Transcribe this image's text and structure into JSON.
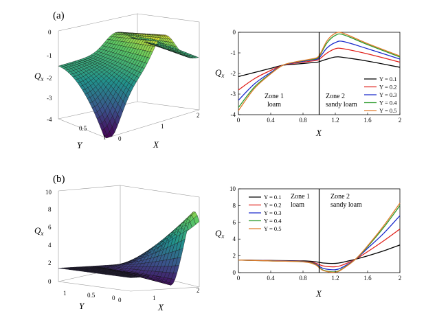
{
  "panel_labels": [
    "(a)",
    "(b)"
  ],
  "colors": {
    "Y = 0.1": "#000000",
    "Y = 0.2": "#e0201a",
    "Y = 0.3": "#1a2acc",
    "Y = 0.4": "#2a9a2a",
    "Y = 0.5": "#e07a2a"
  },
  "chart_data": [
    {
      "id": "a-surface",
      "type": "surface3d",
      "panel": "(a)",
      "zlabel": "Q_x",
      "xlabel": "X",
      "ylabel": "Y",
      "zlim": [
        -4,
        0
      ],
      "z_ticks": [
        "0",
        "-1",
        "-2",
        "-3",
        "-4"
      ],
      "x_ticks": [
        "0",
        "1",
        "2"
      ],
      "y_ticks": [
        "0.5",
        "1"
      ],
      "colormap": "viridis",
      "description_points": {
        "min": -4.0,
        "max": -0.1
      }
    },
    {
      "id": "a-lines",
      "type": "line",
      "panel": "(a)",
      "xlabel": "X",
      "ylabel": "Q_x",
      "xlim": [
        0,
        2
      ],
      "ylim": [
        -4,
        0
      ],
      "x_ticks": [
        "0",
        "0.4",
        "0.8",
        "1.2",
        "1.6",
        "2"
      ],
      "y_ticks": [
        "0",
        "-1",
        "-2",
        "-3",
        "-4"
      ],
      "zone_boundary_x": 1,
      "zone1": [
        "Zone 1",
        "loam"
      ],
      "zone2": [
        "Zone 2",
        "sandy loam"
      ],
      "legend": [
        "Y = 0.1",
        "Y = 0.2",
        "Y = 0.3",
        "Y = 0.4",
        "Y = 0.5"
      ],
      "series": [
        {
          "name": "Y = 0.1",
          "x": [
            0,
            0.2,
            0.4,
            0.55,
            0.7,
            0.9,
            0.98,
            1.02,
            1.1,
            1.2,
            1.3,
            1.6,
            2.0
          ],
          "y": [
            -2.15,
            -1.95,
            -1.75,
            -1.6,
            -1.55,
            -1.48,
            -1.45,
            -1.4,
            -1.3,
            -1.2,
            -1.22,
            -1.4,
            -1.7
          ]
        },
        {
          "name": "Y = 0.2",
          "x": [
            0,
            0.2,
            0.4,
            0.55,
            0.7,
            0.9,
            0.98,
            1.02,
            1.1,
            1.2,
            1.3,
            1.6,
            2.0
          ],
          "y": [
            -2.8,
            -2.25,
            -1.85,
            -1.6,
            -1.5,
            -1.4,
            -1.35,
            -1.25,
            -1.0,
            -0.8,
            -0.8,
            -1.05,
            -1.45
          ]
        },
        {
          "name": "Y = 0.3",
          "x": [
            0,
            0.2,
            0.4,
            0.55,
            0.7,
            0.9,
            0.98,
            1.02,
            1.1,
            1.2,
            1.3,
            1.6,
            2.0
          ],
          "y": [
            -3.3,
            -2.5,
            -1.95,
            -1.6,
            -1.47,
            -1.35,
            -1.3,
            -1.15,
            -0.75,
            -0.5,
            -0.45,
            -0.8,
            -1.3
          ]
        },
        {
          "name": "Y = 0.4",
          "x": [
            0,
            0.2,
            0.4,
            0.55,
            0.7,
            0.9,
            0.98,
            1.02,
            1.1,
            1.2,
            1.3,
            1.6,
            2.0
          ],
          "y": [
            -3.65,
            -2.65,
            -2.0,
            -1.6,
            -1.45,
            -1.32,
            -1.25,
            -1.05,
            -0.5,
            -0.15,
            -0.12,
            -0.6,
            -1.2
          ]
        },
        {
          "name": "Y = 0.5",
          "x": [
            0,
            0.2,
            0.4,
            0.55,
            0.7,
            0.9,
            0.98,
            1.02,
            1.1,
            1.2,
            1.3,
            1.6,
            2.0
          ],
          "y": [
            -3.8,
            -2.72,
            -2.02,
            -1.6,
            -1.44,
            -1.3,
            -1.22,
            -1.0,
            -0.4,
            -0.05,
            -0.05,
            -0.55,
            -1.15
          ]
        }
      ]
    },
    {
      "id": "b-surface",
      "type": "surface3d",
      "panel": "(b)",
      "zlabel": "Q_x",
      "xlabel": "X",
      "ylabel": "Y",
      "zlim": [
        0,
        10
      ],
      "z_ticks": [
        "10",
        "8",
        "6",
        "4",
        "2",
        "0"
      ],
      "x_ticks": [
        "0",
        "1",
        "2"
      ],
      "y_ticks": [
        "1",
        "0.5",
        "0"
      ],
      "colormap": "viridis",
      "description_points": {
        "min": 0.1,
        "max": 8.3
      }
    },
    {
      "id": "b-lines",
      "type": "line",
      "panel": "(b)",
      "xlabel": "X",
      "ylabel": "Q_x",
      "xlim": [
        0,
        2
      ],
      "ylim": [
        0,
        10
      ],
      "x_ticks": [
        "0",
        "0.4",
        "0.8",
        "1.2",
        "1.6",
        "2"
      ],
      "y_ticks": [
        "10",
        "8",
        "6",
        "4",
        "2",
        "0"
      ],
      "zone_boundary_x": 1,
      "zone1": [
        "Zone 1",
        "loam"
      ],
      "zone2": [
        "Zone 2",
        "sandy loam"
      ],
      "legend": [
        "Y = 0.1",
        "Y = 0.2",
        "Y = 0.3",
        "Y = 0.4",
        "Y = 0.5"
      ],
      "series": [
        {
          "name": "Y = 0.1",
          "x": [
            0,
            0.4,
            0.8,
            0.95,
            1.05,
            1.2,
            1.3,
            1.45,
            1.6,
            1.8,
            2.0
          ],
          "y": [
            1.5,
            1.45,
            1.4,
            1.3,
            1.15,
            1.1,
            1.25,
            1.6,
            2.0,
            2.6,
            3.3
          ]
        },
        {
          "name": "Y = 0.2",
          "x": [
            0,
            0.4,
            0.8,
            0.95,
            1.05,
            1.2,
            1.3,
            1.45,
            1.6,
            1.8,
            2.0
          ],
          "y": [
            1.5,
            1.43,
            1.35,
            1.15,
            0.8,
            0.7,
            0.95,
            1.6,
            2.5,
            3.8,
            5.2
          ]
        },
        {
          "name": "Y = 0.3",
          "x": [
            0,
            0.4,
            0.8,
            0.95,
            1.05,
            1.2,
            1.3,
            1.45,
            1.6,
            1.8,
            2.0
          ],
          "y": [
            1.5,
            1.42,
            1.32,
            1.05,
            0.5,
            0.35,
            0.7,
            1.6,
            2.9,
            4.7,
            6.8
          ]
        },
        {
          "name": "Y = 0.4",
          "x": [
            0,
            0.4,
            0.8,
            0.95,
            1.05,
            1.2,
            1.3,
            1.45,
            1.6,
            1.8,
            2.0
          ],
          "y": [
            1.5,
            1.4,
            1.3,
            1.0,
            0.3,
            0.1,
            0.55,
            1.6,
            3.1,
            5.4,
            8.0
          ]
        },
        {
          "name": "Y = 0.5",
          "x": [
            0,
            0.4,
            0.8,
            0.95,
            1.05,
            1.2,
            1.3,
            1.45,
            1.6,
            1.8,
            2.0
          ],
          "y": [
            1.5,
            1.4,
            1.28,
            0.95,
            0.25,
            0.05,
            0.5,
            1.6,
            3.2,
            5.6,
            8.3
          ]
        }
      ]
    }
  ]
}
